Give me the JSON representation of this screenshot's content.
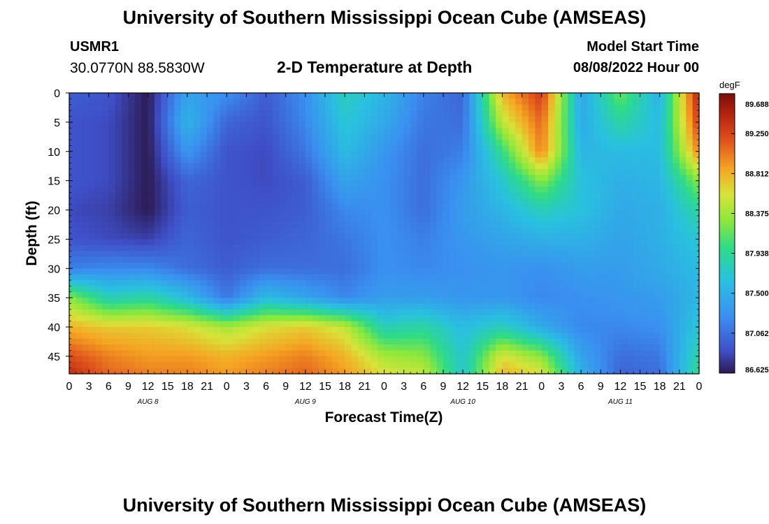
{
  "header": {
    "title": "University of Southern Mississippi Ocean Cube (AMSEAS)",
    "station_id": "USMR1",
    "station_coords": "30.0770N  88.5830W",
    "chart_title": "2-D Temperature at Depth",
    "model_start_label": "Model Start Time",
    "model_start_value": "08/08/2022 Hour 00"
  },
  "footer": {
    "title": "University of Southern Mississippi Ocean Cube (AMSEAS)"
  },
  "chart_data": {
    "type": "heatmap",
    "title": "2-D Temperature at Depth",
    "xlabel": "Forecast Time(Z)",
    "ylabel": "Depth (ft)",
    "x_range_hours": [
      0,
      96
    ],
    "y_range_ft": [
      0,
      48
    ],
    "x_tick_labels": [
      "0",
      "3",
      "6",
      "9",
      "12",
      "15",
      "18",
      "21",
      "0",
      "3",
      "6",
      "9",
      "12",
      "15",
      "18",
      "21",
      "0",
      "3",
      "6",
      "9",
      "12",
      "15",
      "18",
      "21",
      "0",
      "3",
      "6",
      "9",
      "12",
      "15",
      "18",
      "21",
      "0"
    ],
    "x_tick_step_hours": 3,
    "y_ticks": [
      0,
      5,
      10,
      15,
      20,
      25,
      30,
      35,
      40,
      45
    ],
    "day_labels": [
      {
        "text": "AUG 8",
        "hour": 12
      },
      {
        "text": "AUG 9",
        "hour": 36
      },
      {
        "text": "AUG 10",
        "hour": 60
      },
      {
        "text": "AUG 11",
        "hour": 84
      }
    ],
    "colorbar": {
      "units": "degF",
      "min": 86.625,
      "max": 89.688,
      "tick_values": [
        89.688,
        89.25,
        88.812,
        88.375,
        87.938,
        87.5,
        87.062,
        86.625
      ],
      "tick_labels": [
        "89.688",
        "89.250",
        "88.812",
        "88.375",
        "87.938",
        "87.500",
        "87.062",
        "86.625"
      ]
    },
    "temperature_degF": {
      "times_hours": [
        0,
        6,
        12,
        18,
        24,
        30,
        36,
        42,
        48,
        54,
        60,
        66,
        72,
        78,
        84,
        90,
        96
      ],
      "depths_ft": [
        0,
        5,
        10,
        15,
        20,
        25,
        30,
        35,
        40,
        45,
        48
      ],
      "values": [
        [
          86.95,
          86.9,
          86.63,
          87.4,
          87.25,
          86.95,
          87.25,
          87.8,
          87.55,
          87.15,
          87.0,
          88.8,
          89.3,
          87.4,
          88.2,
          87.5,
          89.5
        ],
        [
          86.9,
          86.85,
          86.63,
          87.55,
          87.0,
          86.9,
          87.2,
          87.7,
          87.45,
          87.1,
          87.05,
          88.5,
          89.1,
          87.45,
          87.9,
          87.6,
          89.3
        ],
        [
          86.9,
          86.85,
          86.63,
          87.3,
          86.9,
          86.85,
          87.1,
          87.6,
          87.3,
          87.05,
          87.15,
          88.0,
          89.0,
          87.55,
          87.6,
          87.6,
          89.0
        ],
        [
          86.9,
          86.85,
          86.63,
          87.0,
          86.9,
          86.85,
          86.95,
          87.4,
          87.25,
          87.05,
          87.3,
          87.7,
          88.3,
          87.65,
          87.5,
          87.55,
          88.3
        ],
        [
          86.85,
          86.8,
          86.63,
          86.95,
          86.9,
          86.9,
          86.95,
          87.2,
          87.25,
          87.05,
          87.35,
          87.55,
          87.8,
          87.65,
          87.45,
          87.5,
          87.9
        ],
        [
          86.9,
          86.85,
          86.8,
          87.0,
          86.9,
          86.95,
          87.0,
          87.1,
          87.25,
          87.15,
          87.3,
          87.4,
          87.5,
          87.5,
          87.4,
          87.5,
          87.7
        ],
        [
          87.15,
          87.2,
          87.2,
          87.05,
          86.95,
          87.05,
          87.05,
          87.05,
          87.25,
          87.2,
          87.25,
          87.3,
          87.25,
          87.35,
          87.35,
          87.45,
          87.6
        ],
        [
          88.3,
          87.8,
          87.9,
          87.6,
          87.1,
          87.6,
          87.4,
          87.2,
          87.35,
          87.35,
          87.3,
          87.3,
          87.2,
          87.25,
          87.3,
          87.35,
          87.55
        ],
        [
          88.8,
          88.7,
          88.7,
          88.6,
          88.4,
          88.6,
          88.7,
          88.5,
          87.8,
          87.9,
          87.6,
          87.8,
          87.45,
          87.2,
          87.2,
          87.25,
          87.7
        ],
        [
          89.2,
          89.0,
          88.9,
          88.9,
          88.8,
          88.9,
          89.0,
          88.8,
          88.4,
          88.3,
          87.7,
          88.6,
          88.3,
          87.4,
          87.05,
          87.1,
          87.9
        ],
        [
          89.4,
          89.1,
          89.0,
          89.0,
          88.9,
          89.0,
          89.1,
          88.9,
          88.6,
          88.5,
          87.7,
          88.8,
          88.6,
          87.5,
          87.0,
          87.05,
          88.0
        ]
      ]
    }
  }
}
